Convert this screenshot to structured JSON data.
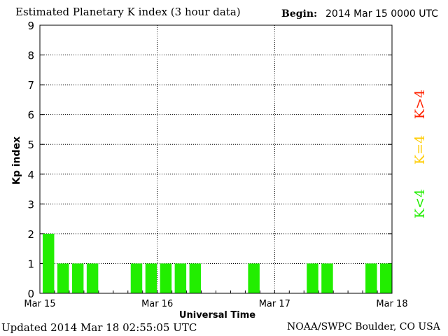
{
  "header": {
    "title": "Estimated Planetary K index (3 hour data)",
    "begin_label": "Begin:",
    "begin_value": "2014 Mar 15 0000 UTC"
  },
  "footer": {
    "updated": "Updated 2014 Mar 18 02:55:05 UTC",
    "credit": "NOAA/SWPC Boulder, CO USA"
  },
  "legend": {
    "high": {
      "label": "K>4",
      "color": "#ff2200"
    },
    "equal": {
      "label": "K=4",
      "color": "#ffcc00"
    },
    "low": {
      "label": "K<4",
      "color": "#22ee00"
    }
  },
  "chart_data": {
    "type": "bar",
    "ylabel": "Kp index",
    "xlabel": "Universal Time",
    "ylim": [
      0,
      9
    ],
    "yticks": [
      "0",
      "1",
      "2",
      "3",
      "4",
      "5",
      "6",
      "7",
      "8",
      "9"
    ],
    "xticks": [
      "Mar 15",
      "Mar 16",
      "Mar 17",
      "Mar 18"
    ],
    "intervals_per_day": 8,
    "days": 3,
    "bar_color": "#22ee00",
    "values": [
      2,
      1,
      1,
      1,
      0,
      0,
      1,
      1,
      1,
      1,
      1,
      0,
      0,
      0,
      1,
      0,
      0,
      0,
      1,
      1,
      0,
      0,
      1,
      1
    ],
    "grid": true
  }
}
